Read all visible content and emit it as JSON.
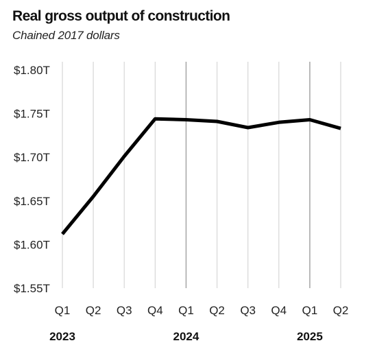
{
  "chart_data": {
    "type": "line",
    "title": "Real gross output of construction",
    "subtitle": "Chained 2017 dollars",
    "x": [
      "Q1",
      "Q2",
      "Q3",
      "Q4",
      "Q1",
      "Q2",
      "Q3",
      "Q4",
      "Q1",
      "Q2"
    ],
    "year_labels": [
      {
        "label": "2023",
        "index": 0
      },
      {
        "label": "2024",
        "index": 4
      },
      {
        "label": "2025",
        "index": 8
      }
    ],
    "series": [
      {
        "values": [
          1.612,
          1.655,
          1.701,
          1.744,
          1.743,
          1.741,
          1.734,
          1.74,
          1.743,
          1.733
        ]
      }
    ],
    "y_ticks": [
      {
        "value": 1.55,
        "label": "$1.55T"
      },
      {
        "value": 1.6,
        "label": "$1.60T"
      },
      {
        "value": 1.65,
        "label": "$1.65T"
      },
      {
        "value": 1.7,
        "label": "$1.70T"
      },
      {
        "value": 1.75,
        "label": "$1.75T"
      },
      {
        "value": 1.8,
        "label": "$1.80T"
      }
    ],
    "ylim": [
      1.55,
      1.8
    ],
    "grid": "vertical",
    "line_color": "#000000",
    "grid_color": "#d6d6d6",
    "year_divider_color": "#aaaaaa"
  }
}
